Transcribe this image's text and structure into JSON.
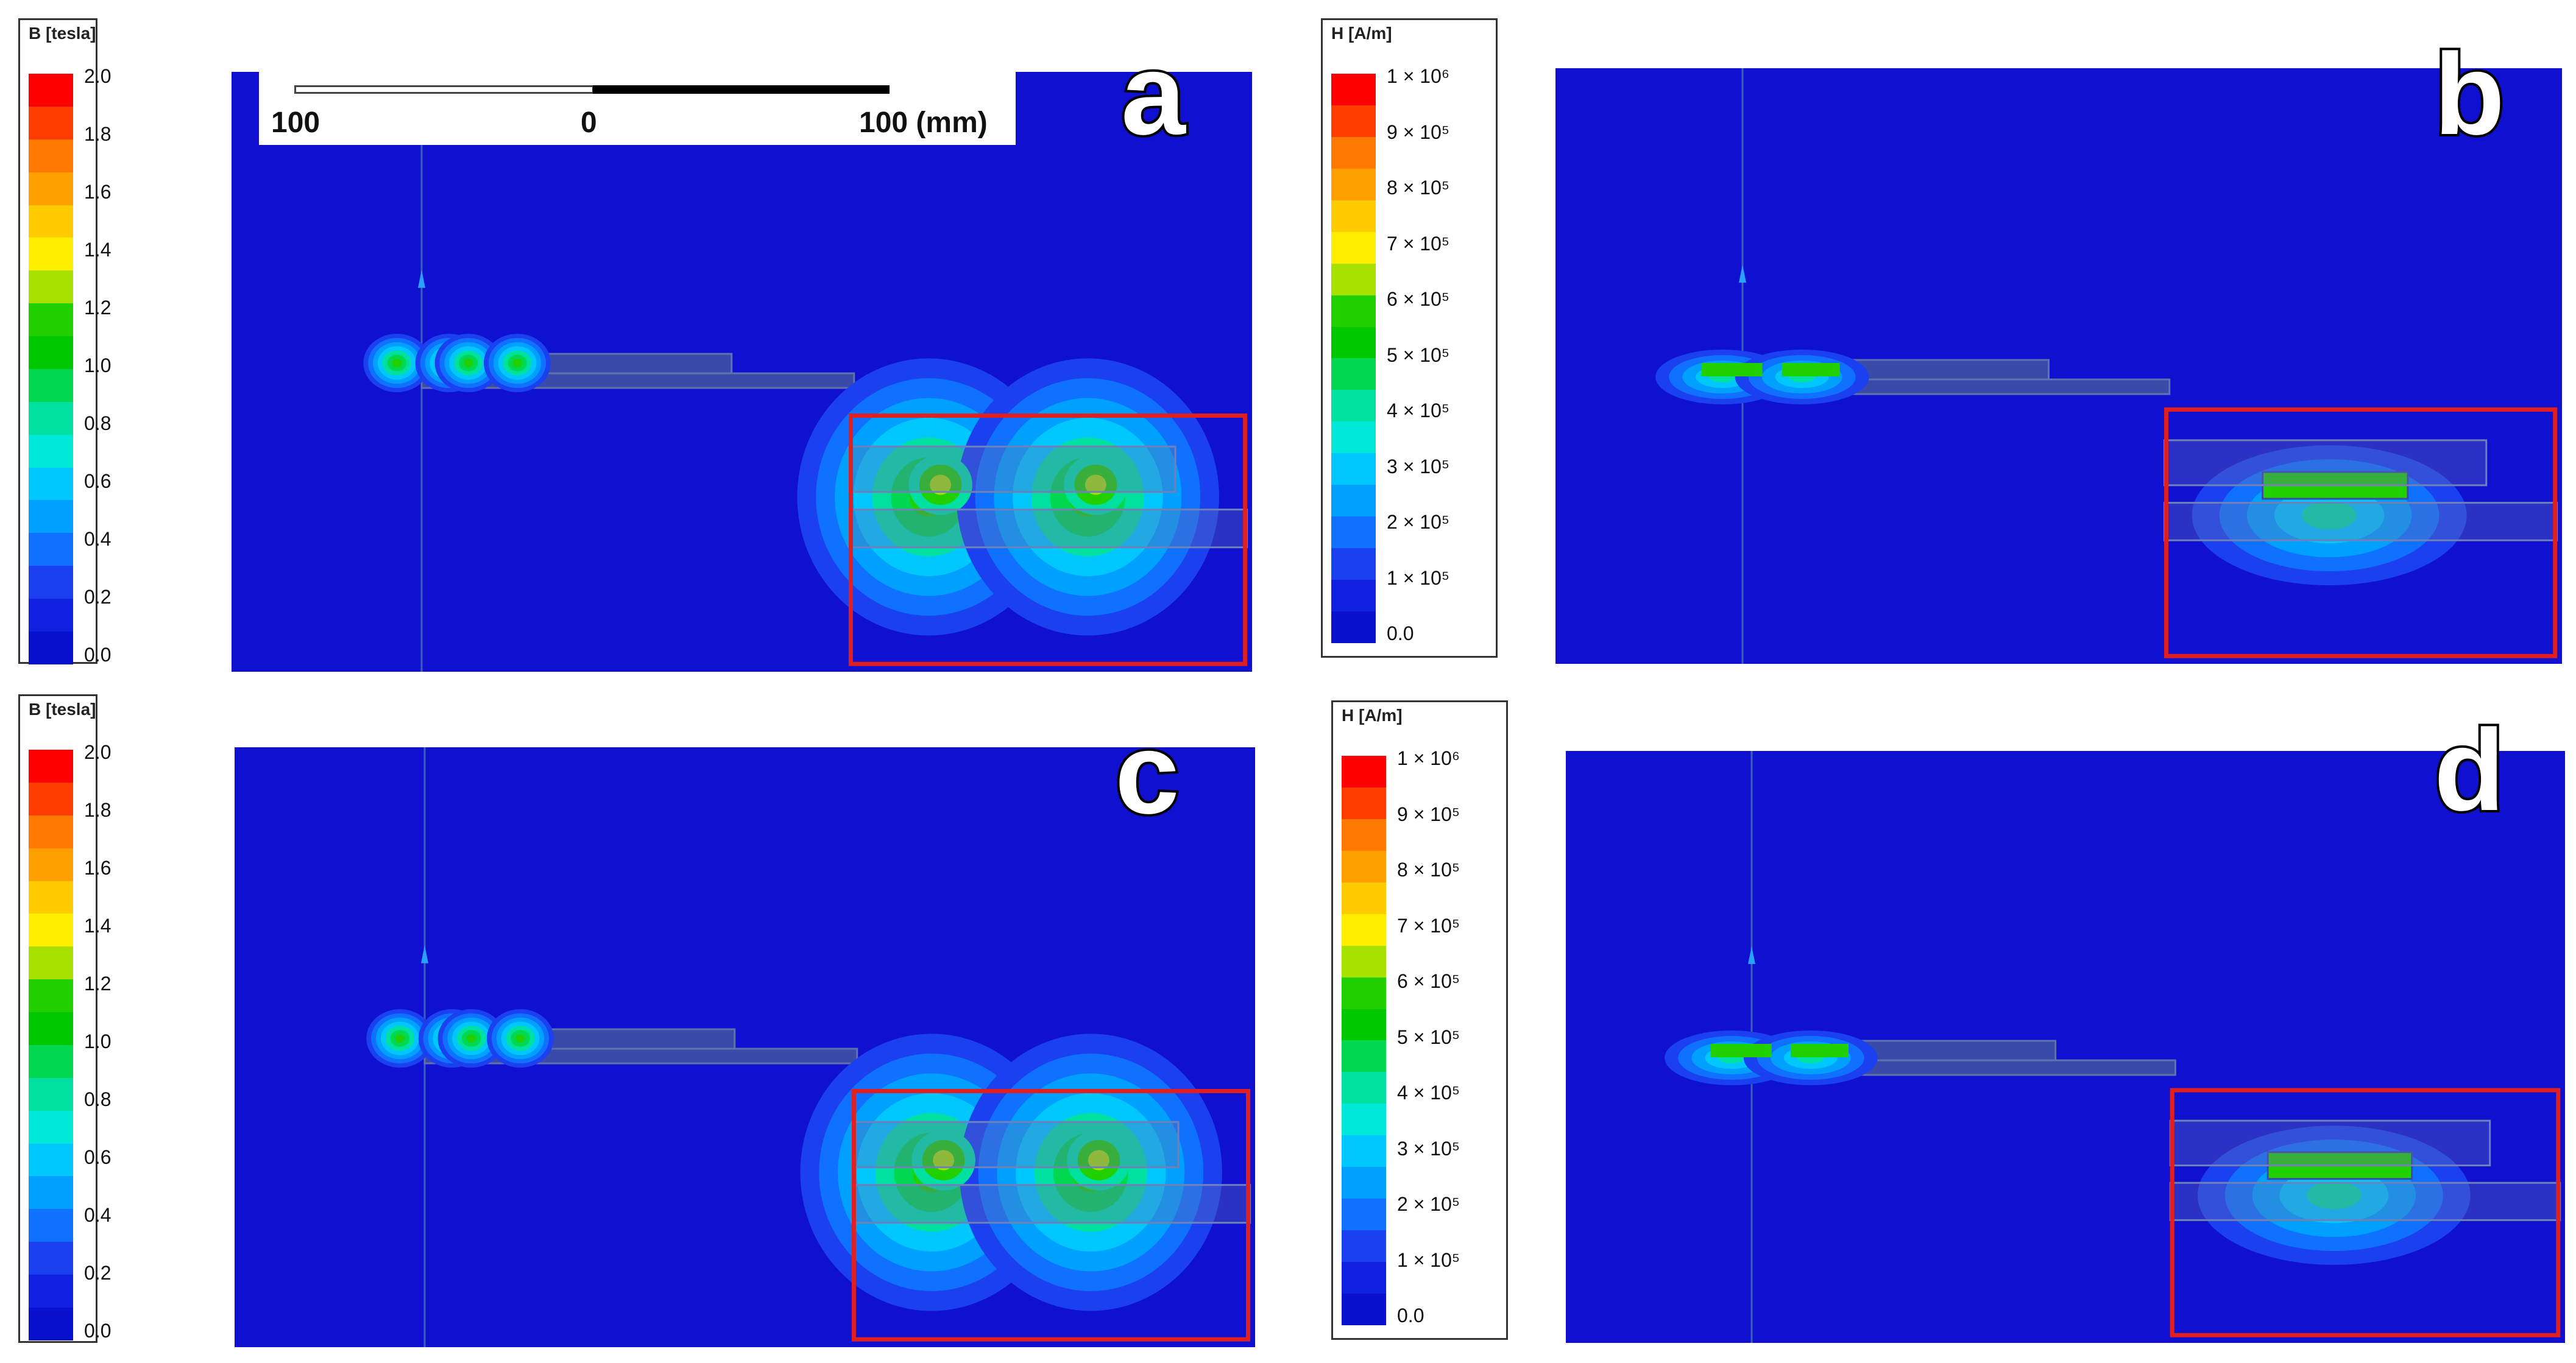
{
  "legend_B": {
    "title": "B [tesla]",
    "ticks": [
      "2.0",
      "1.8",
      "1.6",
      "1.4",
      "1.2",
      "1.0",
      "0.8",
      "0.6",
      "0.4",
      "0.2",
      "0.0"
    ]
  },
  "legend_H": {
    "title": "H [A/m]",
    "ticks": [
      "1 × 10⁶",
      "9 × 10⁵",
      "8 × 10⁵",
      "7 × 10⁵",
      "6 × 10⁵",
      "5 × 10⁵",
      "4 × 10⁵",
      "3 × 10⁵",
      "2 × 10⁵",
      "1 × 10⁵",
      "0.0"
    ]
  },
  "scale": {
    "left": "100",
    "center": "0",
    "right": "100 (mm)"
  },
  "panels": {
    "a": "a",
    "b": "b",
    "c": "c",
    "d": "d"
  },
  "colors": {
    "background_field": "#0f10d0",
    "inset_border": "#e02020",
    "legend_bands": [
      "#ff0000",
      "#ff3c00",
      "#ff7800",
      "#ffa000",
      "#ffcc00",
      "#ffee00",
      "#a8e000",
      "#22d000",
      "#00c800",
      "#00d850",
      "#00e0a0",
      "#00e8d8",
      "#00c8ff",
      "#00a0ff",
      "#1070ff",
      "#1a40f0",
      "#1020e0",
      "#0a10d0"
    ]
  }
}
